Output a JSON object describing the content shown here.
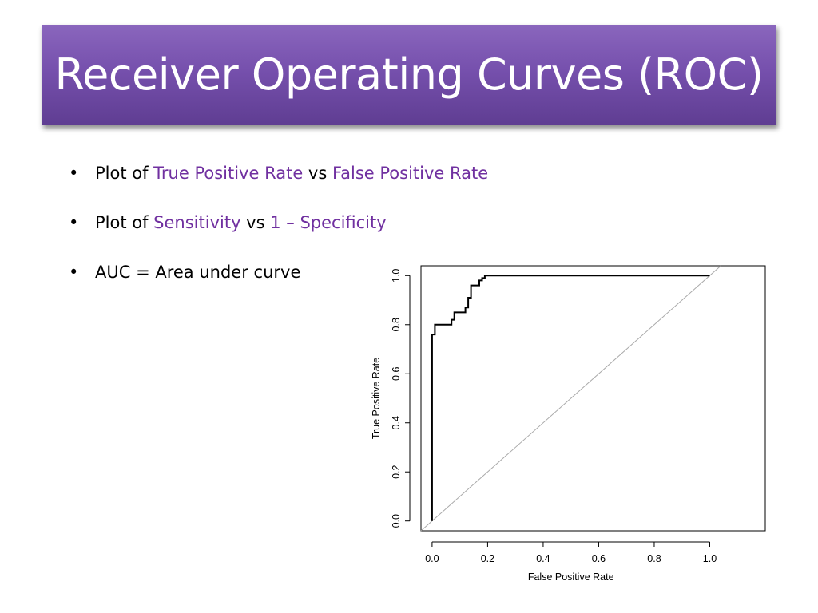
{
  "slide": {
    "title": "Receiver Operating Curves (ROC)",
    "bullet_symbol": "•",
    "bullets": [
      {
        "prefix": "Plot of ",
        "term1": "True Positive Rate",
        "middle": " vs ",
        "term2": "False Positive Rate"
      },
      {
        "prefix": "Plot of ",
        "term1": "Sensitivity",
        "middle": " vs ",
        "term2": "1 – Specificity"
      },
      {
        "text": "AUC = Area under curve"
      }
    ]
  },
  "colors": {
    "title_bar": "#7a55b0",
    "accent_text": "#7030a0",
    "curve": "#000000",
    "diagonal": "#aaaaaa"
  },
  "chart_data": {
    "type": "line",
    "xlabel": "False Positive Rate",
    "ylabel": "True Positive Rate",
    "xlim": [
      -0.04,
      1.2
    ],
    "ylim": [
      -0.04,
      1.04
    ],
    "x_ticks": [
      "0.0",
      "0.2",
      "0.4",
      "0.6",
      "0.8",
      "1.0"
    ],
    "x_tick_values": [
      0,
      0.2,
      0.4,
      0.6,
      0.8,
      1.0
    ],
    "y_ticks": [
      "0.0",
      "0.2",
      "0.4",
      "0.6",
      "0.8",
      "1.0"
    ],
    "y_tick_values": [
      0,
      0.2,
      0.4,
      0.6,
      0.8,
      1.0
    ],
    "grid": false,
    "series": [
      {
        "x": [
          0,
          0,
          0.01,
          0.01,
          0.07,
          0.07,
          0.08,
          0.08,
          0.12,
          0.12,
          0.13,
          0.13,
          0.14,
          0.14,
          0.17,
          0.17,
          0.18,
          0.18,
          0.19,
          0.19,
          1.0
        ],
        "y": [
          0,
          0.76,
          0.76,
          0.8,
          0.8,
          0.82,
          0.82,
          0.85,
          0.85,
          0.87,
          0.87,
          0.91,
          0.91,
          0.96,
          0.96,
          0.98,
          0.98,
          0.99,
          0.99,
          1.0,
          1.0
        ]
      }
    ],
    "reference_line": {
      "x": [
        -0.04,
        1.04
      ],
      "y": [
        -0.04,
        1.04
      ]
    }
  }
}
